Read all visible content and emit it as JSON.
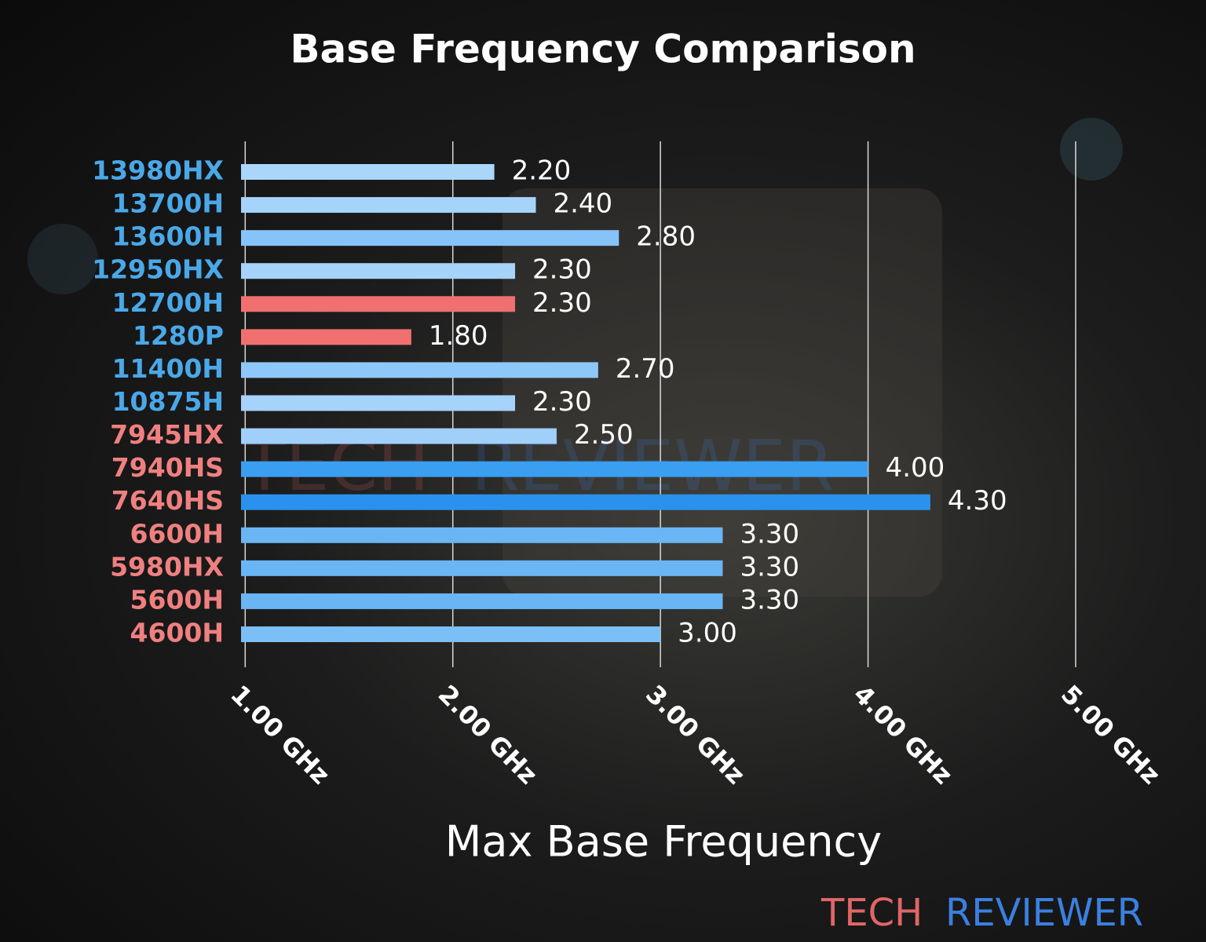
{
  "chart_data": {
    "type": "barh",
    "title": "Base Frequency Comparison",
    "x_label": "Max Base Frequency",
    "categories": [
      "13980HX",
      "13700H",
      "13600H",
      "12950HX",
      "12700H",
      "1280P",
      "11400H",
      "10875H",
      "7945HX",
      "7940HS",
      "7640HS",
      "6600H",
      "5980HX",
      "5600H",
      "4600H"
    ],
    "values": [
      2.2,
      2.4,
      2.8,
      2.3,
      2.3,
      1.8,
      2.7,
      2.3,
      2.5,
      4.0,
      4.3,
      3.3,
      3.3,
      3.3,
      3.0
    ],
    "value_labels": [
      "2.20",
      "2.40",
      "2.80",
      "2.30",
      "2.30",
      "1.80",
      "2.70",
      "2.30",
      "2.50",
      "4.00",
      "4.30",
      "3.30",
      "3.30",
      "3.30",
      "3.00"
    ],
    "colors": [
      "#aad6fa",
      "#a6d3fa",
      "#86c3f8",
      "#a6d3fa",
      "#f07070",
      "#f07070",
      "#8ec8f8",
      "#a6d3fa",
      "#a0d0fa",
      "#3a9ff0",
      "#2a92ee",
      "#6ab6f4",
      "#6ab6f4",
      "#6ab6f4",
      "#7cbef6"
    ],
    "label_colors": [
      "#4aa8e8",
      "#4aa8e8",
      "#4aa8e8",
      "#4aa8e8",
      "#4aa8e8",
      "#4aa8e8",
      "#4aa8e8",
      "#4aa8e8",
      "#f08080",
      "#f08080",
      "#f08080",
      "#f08080",
      "#f08080",
      "#f08080",
      "#f08080"
    ],
    "xlim": [
      0.98,
      5.0
    ],
    "xticks": [
      {
        "value": 1,
        "label": "1.00 GHz"
      },
      {
        "value": 2,
        "label": "2.00 GHz"
      },
      {
        "value": 3,
        "label": "3.00 GHz"
      },
      {
        "value": 4,
        "label": "4.00 GHz"
      },
      {
        "value": 5,
        "label": "5.00 GHz"
      }
    ],
    "grid": true,
    "logo": {
      "part1": "TECH",
      "part2": "REVIEWER",
      "color1": "#e06666",
      "color2": "#3a80e0"
    }
  }
}
